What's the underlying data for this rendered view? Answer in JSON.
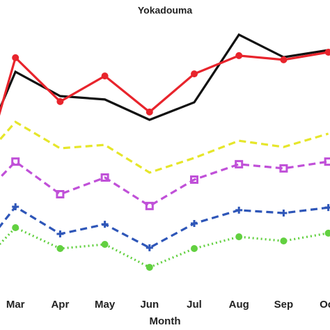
{
  "chart_data": {
    "type": "line",
    "title": "Yokadouma",
    "x_label": "Month",
    "categories": [
      null,
      "Mar",
      "Apr",
      "May",
      "Jun",
      "Jul",
      "Aug",
      "Sep",
      "Oct"
    ],
    "ylim": [
      0,
      100
    ],
    "series": [
      {
        "color": "#111111",
        "dash": "solid",
        "marker": "none",
        "values": [
          40.3,
          80.5,
          71.2,
          69.9,
          62.1,
          68.8,
          94.7,
          86.1,
          88.8
        ]
      },
      {
        "color": "#e8242c",
        "dash": "solid",
        "marker": "circle",
        "values": [
          26.1,
          85.9,
          69.1,
          78.9,
          65.1,
          79.7,
          86.7,
          85.1,
          88.0
        ]
      },
      {
        "color": "#e6e62a",
        "dash": "dashed",
        "marker": "none",
        "values": [
          41.9,
          61.3,
          51.2,
          52.5,
          41.9,
          47.5,
          54.1,
          51.7,
          56.8
        ]
      },
      {
        "color": "#c050d8",
        "dash": "dashed",
        "marker": "square",
        "values": [
          28.3,
          46.1,
          33.6,
          40.0,
          29.1,
          39.2,
          45.1,
          43.5,
          46.1
        ]
      },
      {
        "color": "#2e56b8",
        "dash": "dashed",
        "marker": "plus",
        "values": [
          7.2,
          28.8,
          18.4,
          22.1,
          13.1,
          22.4,
          27.5,
          26.4,
          28.5
        ]
      },
      {
        "color": "#62d040",
        "dash": "dotted",
        "marker": "circle",
        "values": [
          2.9,
          20.8,
          12.8,
          14.4,
          5.6,
          12.8,
          17.3,
          15.7,
          18.7
        ]
      }
    ]
  }
}
